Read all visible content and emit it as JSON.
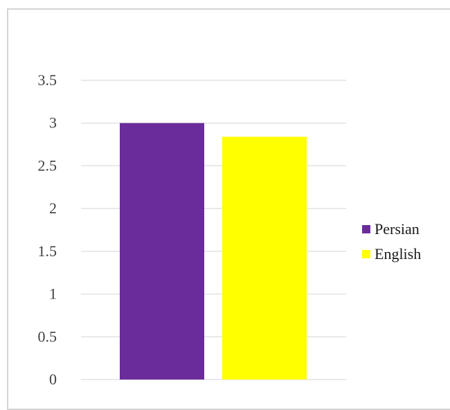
{
  "chart_data": {
    "type": "bar",
    "categories": [
      ""
    ],
    "series": [
      {
        "name": "Persian",
        "values": [
          3.0
        ],
        "color": "#6a2c9a"
      },
      {
        "name": "English",
        "values": [
          2.84
        ],
        "color": "#ffff00"
      }
    ],
    "ylim": [
      0,
      3.5
    ],
    "yticks": [
      "0",
      "0.5",
      "1",
      "1.5",
      "2",
      "2.5",
      "3",
      "3.5"
    ],
    "grid": true,
    "legend_position": "right",
    "title": "",
    "xlabel": "",
    "ylabel": ""
  }
}
